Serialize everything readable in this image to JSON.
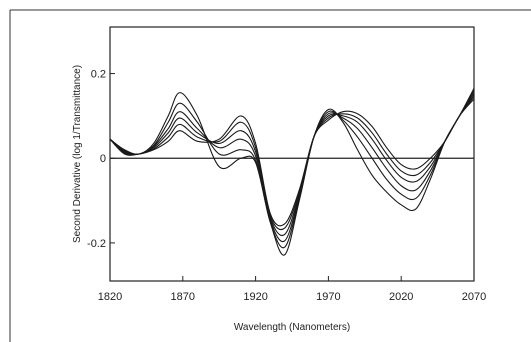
{
  "chart_data": {
    "type": "line",
    "title": "",
    "xlabel": "Wavelength (Nanometers)",
    "ylabel": "Second Derivative (log 1/Transmittance)",
    "xlim": [
      1820,
      2070
    ],
    "ylim": [
      -0.29,
      0.31
    ],
    "xticks": [
      1820,
      1870,
      1920,
      1970,
      2020,
      2070
    ],
    "xtick_labels": [
      "1820",
      "1870",
      "1920",
      "1970",
      "2020",
      "2070"
    ],
    "yticks": [
      0.2,
      0,
      -0.2
    ],
    "ytick_labels": [
      "0.2",
      "0",
      "-0.2"
    ],
    "zero_line": true,
    "grid": false,
    "legend": "none",
    "x": [
      1820,
      1830,
      1840,
      1850,
      1860,
      1868,
      1880,
      1895,
      1910,
      1920,
      1930,
      1940,
      1950,
      1960,
      1970,
      1980,
      1990,
      2000,
      2010,
      2020,
      2030,
      2040,
      2050,
      2060,
      2070
    ],
    "series": [
      {
        "values": [
          0.045,
          0.02,
          0.01,
          0.035,
          0.1,
          0.155,
          0.1,
          -0.02,
          0.0,
          -0.01,
          -0.15,
          -0.228,
          -0.1,
          0.05,
          0.115,
          0.085,
          0.02,
          -0.04,
          -0.08,
          -0.11,
          -0.12,
          -0.05,
          0.04,
          0.1,
          0.165
        ]
      },
      {
        "values": [
          0.045,
          0.018,
          0.01,
          0.03,
          0.085,
          0.13,
          0.085,
          0.01,
          0.02,
          -0.005,
          -0.15,
          -0.21,
          -0.095,
          0.05,
          0.11,
          0.09,
          0.05,
          0.0,
          -0.05,
          -0.085,
          -0.095,
          -0.04,
          0.04,
          0.1,
          0.16
        ]
      },
      {
        "values": [
          0.045,
          0.016,
          0.01,
          0.028,
          0.07,
          0.11,
          0.07,
          0.025,
          0.045,
          0.005,
          -0.145,
          -0.195,
          -0.09,
          0.05,
          0.105,
          0.095,
          0.07,
          0.025,
          -0.025,
          -0.065,
          -0.075,
          -0.03,
          0.04,
          0.1,
          0.155
        ]
      },
      {
        "values": [
          0.045,
          0.014,
          0.01,
          0.025,
          0.06,
          0.095,
          0.06,
          0.035,
          0.065,
          0.015,
          -0.14,
          -0.18,
          -0.085,
          0.05,
          0.1,
          0.1,
          0.085,
          0.045,
          -0.005,
          -0.045,
          -0.055,
          -0.02,
          0.04,
          0.1,
          0.15
        ]
      },
      {
        "values": [
          0.045,
          0.012,
          0.01,
          0.022,
          0.05,
          0.08,
          0.05,
          0.04,
          0.085,
          0.025,
          -0.135,
          -0.165,
          -0.08,
          0.05,
          0.095,
          0.105,
          0.095,
          0.06,
          0.01,
          -0.03,
          -0.04,
          -0.01,
          0.04,
          0.1,
          0.145
        ]
      },
      {
        "values": [
          0.045,
          0.01,
          0.01,
          0.02,
          0.04,
          0.065,
          0.04,
          0.045,
          0.1,
          0.035,
          -0.13,
          -0.155,
          -0.075,
          0.05,
          0.09,
          0.11,
          0.105,
          0.075,
          0.025,
          -0.015,
          -0.025,
          0.0,
          0.04,
          0.1,
          0.14
        ]
      }
    ]
  }
}
